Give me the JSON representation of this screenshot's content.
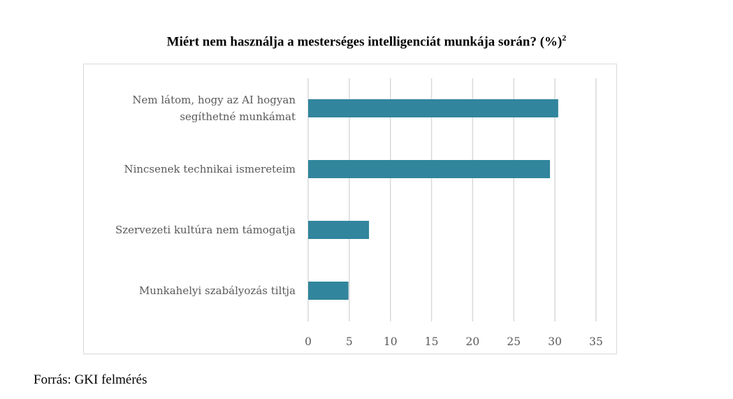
{
  "chart_data": {
    "type": "bar",
    "orientation": "horizontal",
    "title": "Miért nem használja a mesterséges intelligenciát munkája során? (%)",
    "title_superscript": "2",
    "categories": [
      [
        "Nem látom, hogy az AI hogyan",
        "segíthetné munkámat"
      ],
      [
        "Nincsenek technikai ismereteim"
      ],
      [
        "Szervezeti kultúra nem támogatja"
      ],
      [
        "Munkahelyi szabályozás tiltja"
      ]
    ],
    "values": [
      30.4,
      29.4,
      7.4,
      4.9
    ],
    "xlim": [
      0,
      35
    ],
    "xticks": [
      "0",
      "5",
      "10",
      "15",
      "20",
      "25",
      "30",
      "35"
    ],
    "grid": true,
    "bar_color": "#31859c",
    "xlabel": "",
    "ylabel": ""
  },
  "source": "Forrás: GKI felmérés"
}
